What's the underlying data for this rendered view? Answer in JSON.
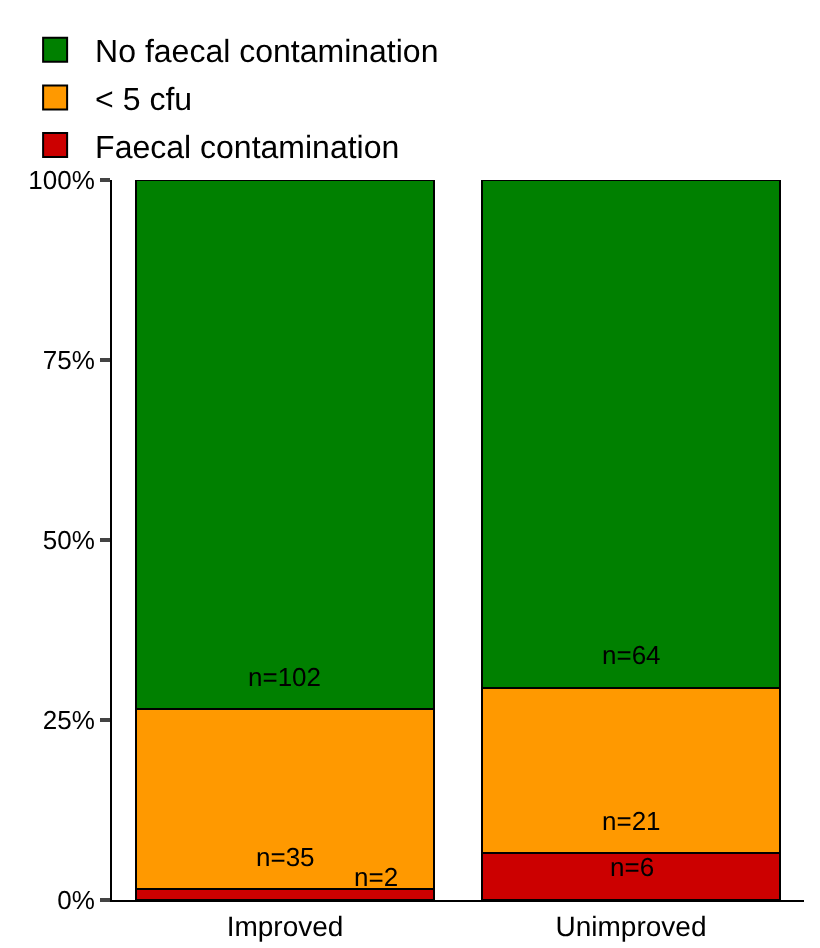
{
  "chart_data": {
    "type": "bar",
    "stacked": true,
    "categories": [
      "Improved",
      "Unimproved"
    ],
    "series": [
      {
        "name": "Faecal contamination",
        "color": "#cc0000",
        "values": [
          1.5,
          6.5
        ]
      },
      {
        "name": "< 5 cfu",
        "color": "#ff9900",
        "values": [
          25,
          23
        ]
      },
      {
        "name": "No faecal contamination",
        "color": "#008000",
        "values": [
          73.5,
          70.5
        ]
      }
    ],
    "annotations": [
      {
        "text": "n=35",
        "x": "Improved",
        "y": 1.5
      },
      {
        "text": "n=2",
        "x": "Improved",
        "y": 0
      },
      {
        "text": "n=102",
        "x": "Improved",
        "y": 26.5
      },
      {
        "text": "n=6",
        "x": "Unimproved",
        "y": 0
      },
      {
        "text": "n=21",
        "x": "Unimproved",
        "y": 6.5
      },
      {
        "text": "n=64",
        "x": "Unimproved",
        "y": 29.5
      }
    ],
    "ylim": [
      0,
      100
    ],
    "yticks": [
      {
        "value": 0,
        "label": "0%"
      },
      {
        "value": 25,
        "label": "25%"
      },
      {
        "value": 50,
        "label": "50%"
      },
      {
        "value": 75,
        "label": "75%"
      },
      {
        "value": 100,
        "label": "100%"
      }
    ],
    "grid": false,
    "legend": "top left"
  }
}
